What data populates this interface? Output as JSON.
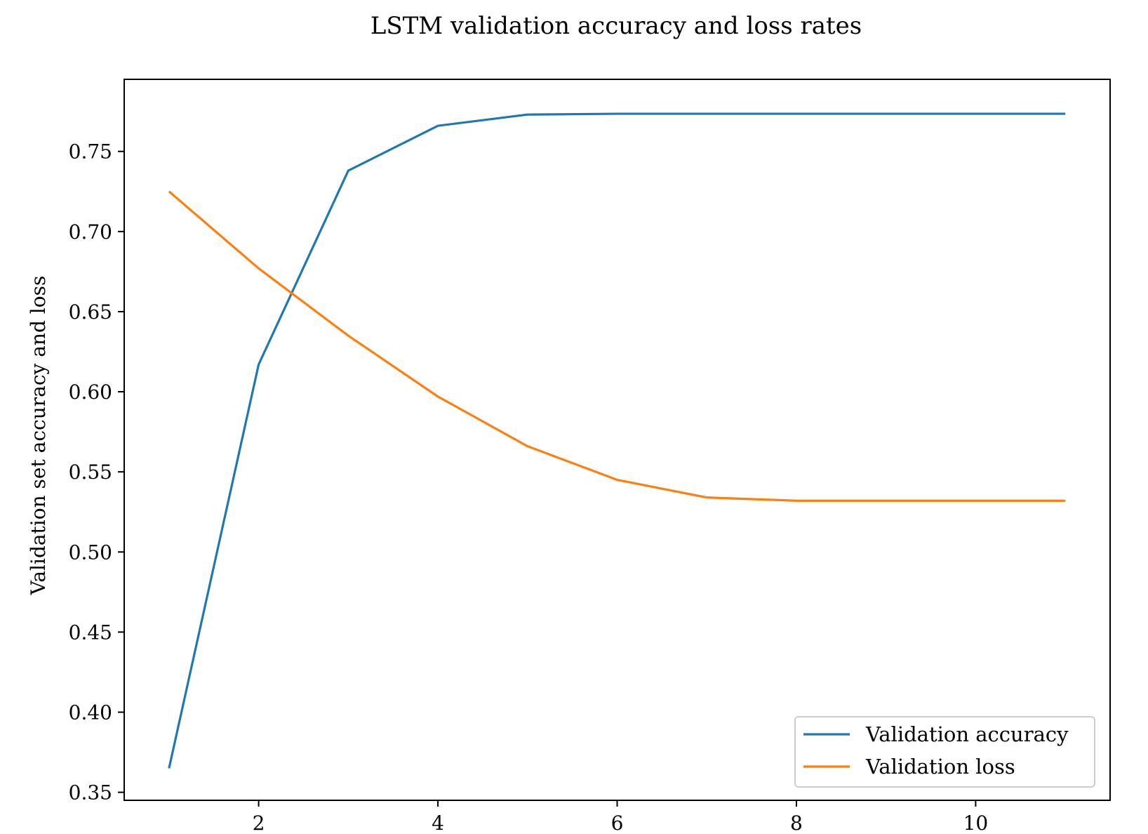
{
  "chart_data": {
    "type": "line",
    "title": "LSTM validation accuracy and loss rates",
    "xlabel": "",
    "ylabel": "Validation set accuracy and loss",
    "xlim": [
      0.5,
      11.5
    ],
    "ylim": [
      0.345,
      0.795
    ],
    "xticks": [
      2,
      4,
      6,
      8,
      10
    ],
    "xtick_labels": [
      "2",
      "4",
      "6",
      "8",
      "10"
    ],
    "yticks": [
      0.35,
      0.4,
      0.45,
      0.5,
      0.55,
      0.6,
      0.65,
      0.7,
      0.75
    ],
    "ytick_labels": [
      "0.35",
      "0.40",
      "0.45",
      "0.50",
      "0.55",
      "0.60",
      "0.65",
      "0.70",
      "0.75"
    ],
    "x": [
      1,
      2,
      3,
      4,
      5,
      6,
      7,
      8,
      9,
      10,
      11
    ],
    "series": [
      {
        "name": "Validation accuracy",
        "color": "#1f77b4",
        "values": [
          0.365,
          0.617,
          0.738,
          0.766,
          0.773,
          0.7735,
          0.7735,
          0.7735,
          0.7735,
          0.7735,
          0.7735
        ]
      },
      {
        "name": "Validation loss",
        "color": "#ff7f0e",
        "values": [
          0.725,
          0.677,
          0.635,
          0.597,
          0.566,
          0.545,
          0.534,
          0.532,
          0.532,
          0.532,
          0.532
        ]
      }
    ],
    "grid": false,
    "legend_position": "lower-right"
  }
}
